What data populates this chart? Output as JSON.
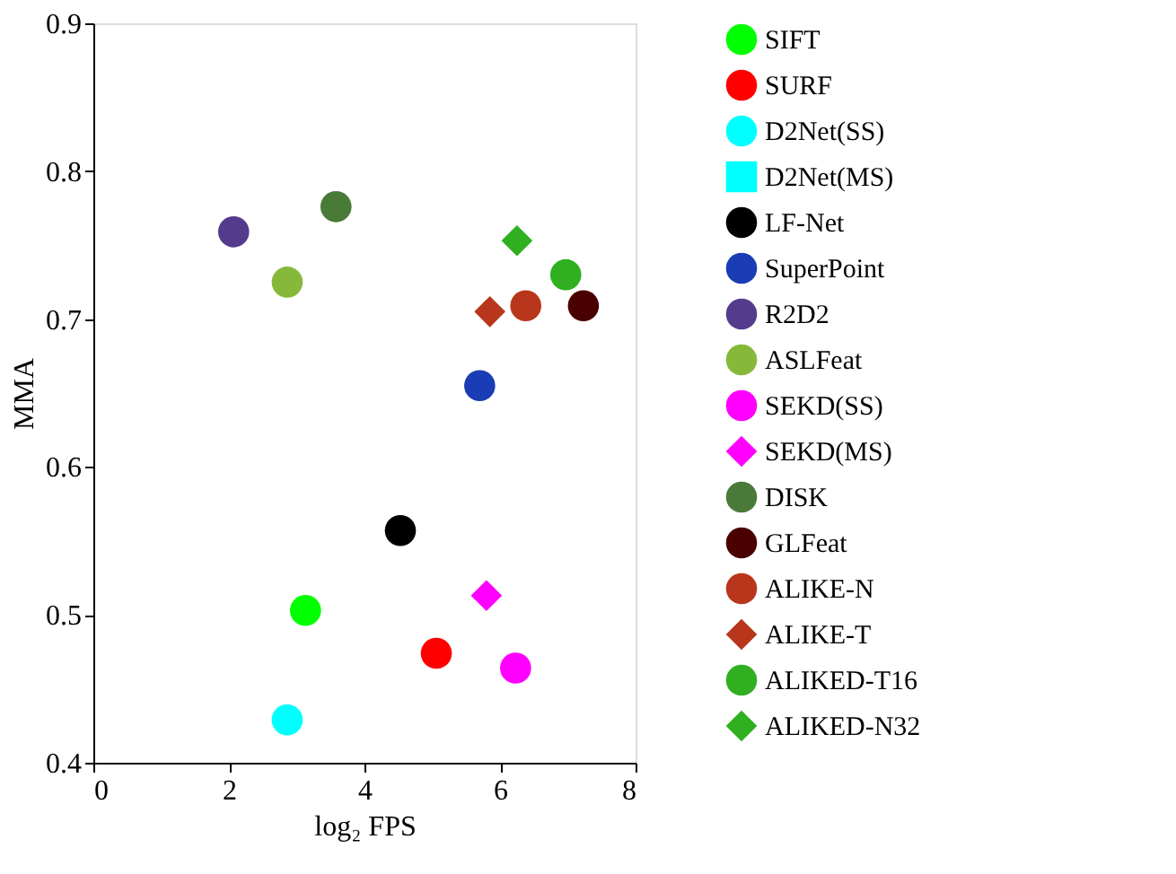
{
  "chart_data": {
    "type": "scatter",
    "xlabel": "log₂ FPS",
    "ylabel": "MMA",
    "xlim": [
      0,
      8
    ],
    "xticks": [
      0,
      2,
      4,
      6,
      8
    ],
    "ylim": [
      0.4,
      0.9
    ],
    "yticks": [
      0.4,
      0.5,
      0.6,
      0.7,
      0.8,
      0.9
    ],
    "grid": false,
    "legend": "right",
    "series": [
      {
        "name": "SIFT",
        "color": "#00ff00",
        "marker": "circle",
        "x": [
          3.13
        ],
        "values": [
          0.503
        ]
      },
      {
        "name": "SURF",
        "color": "#ff0000",
        "marker": "circle",
        "x": [
          5.06
        ],
        "values": [
          0.474
        ]
      },
      {
        "name": "D2Net(SS)",
        "color": "#00ffff",
        "marker": "circle",
        "x": [
          2.86
        ],
        "values": [
          0.429
        ]
      },
      {
        "name": "D2Net(MS)",
        "color": "#00ffff",
        "marker": "square",
        "x": [
          null
        ],
        "values": [
          null
        ]
      },
      {
        "name": "LF-Net",
        "color": "#000000",
        "marker": "circle",
        "x": [
          4.53
        ],
        "values": [
          0.557
        ]
      },
      {
        "name": "SuperPoint",
        "color": "#1a3cb4",
        "marker": "circle",
        "x": [
          5.7
        ],
        "values": [
          0.655
        ]
      },
      {
        "name": "R2D2",
        "color": "#553b8c",
        "marker": "circle",
        "x": [
          2.07
        ],
        "values": [
          0.759
        ]
      },
      {
        "name": "ASLFeat",
        "color": "#86b93a",
        "marker": "circle",
        "x": [
          2.86
        ],
        "values": [
          0.725
        ]
      },
      {
        "name": "SEKD(SS)",
        "color": "#ff00ff",
        "marker": "circle",
        "x": [
          6.23
        ],
        "values": [
          0.464
        ]
      },
      {
        "name": "SEKD(MS)",
        "color": "#ff00ff",
        "marker": "diamond",
        "x": [
          5.8
        ],
        "values": [
          0.513
        ]
      },
      {
        "name": "DISK",
        "color": "#4a7a38",
        "marker": "circle",
        "x": [
          3.58
        ],
        "values": [
          0.776
        ]
      },
      {
        "name": "GLFeat",
        "color": "#4a0000",
        "marker": "circle",
        "x": [
          7.23
        ],
        "values": [
          0.709
        ]
      },
      {
        "name": "ALIKE-N",
        "color": "#b8361c",
        "marker": "circle",
        "x": [
          6.38
        ],
        "values": [
          0.709
        ]
      },
      {
        "name": "ALIKE-T",
        "color": "#b8361c",
        "marker": "diamond",
        "x": [
          5.85
        ],
        "values": [
          0.705
        ]
      },
      {
        "name": "ALIKED-T16",
        "color": "#30b020",
        "marker": "circle",
        "x": [
          6.97
        ],
        "values": [
          0.73
        ]
      },
      {
        "name": "ALIKED-N32",
        "color": "#30b020",
        "marker": "diamond",
        "x": [
          6.25
        ],
        "values": [
          0.753
        ]
      }
    ]
  }
}
